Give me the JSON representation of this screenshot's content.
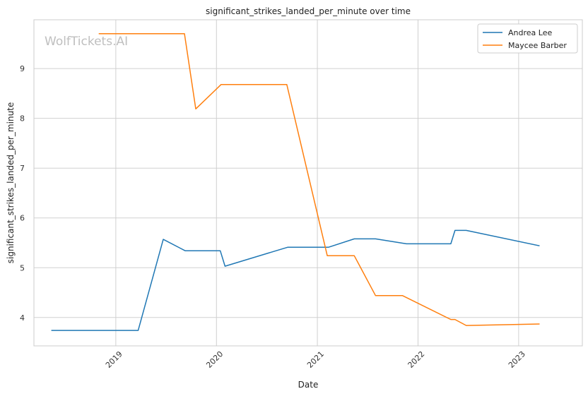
{
  "watermark": "WolfTickets.AI",
  "chart_data": {
    "type": "line",
    "title": "significant_strikes_landed_per_minute over time",
    "xlabel": "Date",
    "ylabel": "significant_strikes_landed_per_minute",
    "x_ticks": [
      "2019",
      "2020",
      "2021",
      "2022",
      "2023"
    ],
    "y_ticks": [
      4,
      5,
      6,
      7,
      8,
      9
    ],
    "xlim": [
      "2018-03-10",
      "2023-08-20"
    ],
    "ylim": [
      3.43,
      9.98
    ],
    "grid": true,
    "legend_position": "top-right",
    "series": [
      {
        "name": "Andrea Lee",
        "color": "#1f77b4",
        "points": [
          [
            "2018-05-12",
            3.74
          ],
          [
            "2019-03-23",
            3.74
          ],
          [
            "2019-06-22",
            5.57
          ],
          [
            "2019-09-10",
            5.34
          ],
          [
            "2020-01-15",
            5.34
          ],
          [
            "2020-02-01",
            5.03
          ],
          [
            "2020-09-15",
            5.41
          ],
          [
            "2021-02-10",
            5.41
          ],
          [
            "2021-05-15",
            5.58
          ],
          [
            "2021-07-31",
            5.58
          ],
          [
            "2021-11-20",
            5.48
          ],
          [
            "2022-04-30",
            5.48
          ],
          [
            "2022-05-15",
            5.75
          ],
          [
            "2022-06-25",
            5.75
          ],
          [
            "2023-03-18",
            5.44
          ]
        ]
      },
      {
        "name": "Maycee Barber",
        "color": "#ff7f0e",
        "points": [
          [
            "2018-10-31",
            9.7
          ],
          [
            "2019-09-07",
            9.7
          ],
          [
            "2019-10-18",
            8.19
          ],
          [
            "2020-01-18",
            8.68
          ],
          [
            "2020-09-12",
            8.68
          ],
          [
            "2021-02-06",
            5.24
          ],
          [
            "2021-05-15",
            5.24
          ],
          [
            "2021-07-31",
            4.44
          ],
          [
            "2021-11-06",
            4.44
          ],
          [
            "2022-04-30",
            3.96
          ],
          [
            "2022-05-15",
            3.96
          ],
          [
            "2022-06-25",
            3.84
          ],
          [
            "2023-03-18",
            3.87
          ]
        ]
      }
    ]
  }
}
